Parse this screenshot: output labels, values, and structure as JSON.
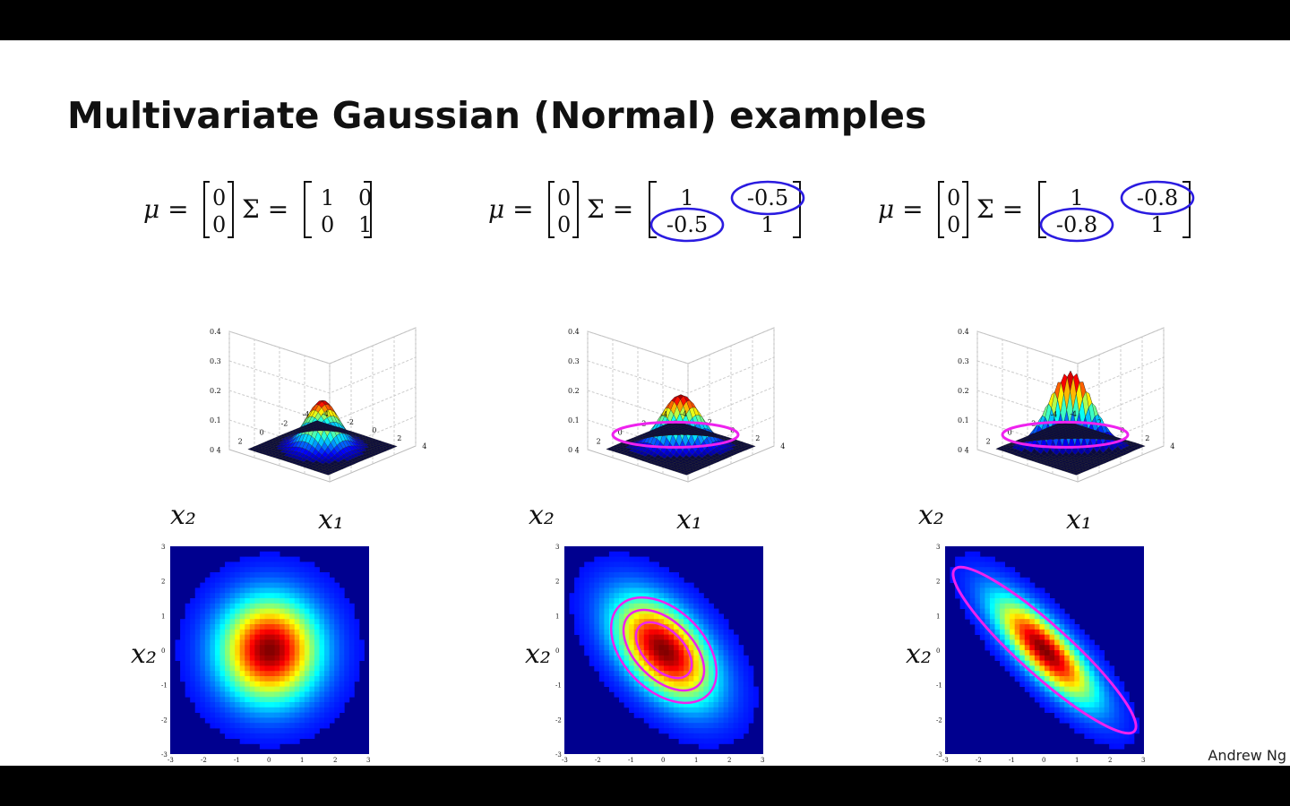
{
  "slide": {
    "title": "Multivariate Gaussian (Normal) examples",
    "author": "Andrew Ng"
  },
  "panels": [
    {
      "mu_symbol": "μ =",
      "mu": [
        "0",
        "0"
      ],
      "sigma_symbol": "Σ =",
      "sigma": [
        [
          "1",
          "0"
        ],
        [
          "0",
          "1"
        ]
      ],
      "circled": [],
      "surface_zticks": [
        "0",
        "0.1",
        "0.2",
        "0.3",
        "0.4"
      ],
      "surface_xticks": [
        "-4",
        "-2",
        "0",
        "2",
        "4"
      ],
      "surface_yticks": [
        "4",
        "2",
        "0",
        "-2",
        "-4"
      ],
      "x1_label": "x₁",
      "x2_label": "x₂",
      "heat_xticks": [
        "-3",
        "-2",
        "-1",
        "0",
        "1",
        "2",
        "3"
      ],
      "heat_yticks": [
        "3",
        "2",
        "1",
        "0",
        "-1",
        "-2",
        "-3"
      ],
      "peak": 0.16,
      "rho": 0.0
    },
    {
      "mu_symbol": "μ =",
      "mu": [
        "0",
        "0"
      ],
      "sigma_symbol": "Σ =",
      "sigma": [
        [
          "1",
          "-0.5"
        ],
        [
          "-0.5",
          "1"
        ]
      ],
      "circled": [
        "01",
        "10"
      ],
      "surface_zticks": [
        "0",
        "0.1",
        "0.2",
        "0.3",
        "0.4"
      ],
      "surface_xticks": [
        "-4",
        "-2",
        "0",
        "2",
        "4"
      ],
      "surface_yticks": [
        "4",
        "2",
        "0",
        "-2",
        "-4"
      ],
      "x1_label": "x₁",
      "x2_label": "x₂",
      "heat_xticks": [
        "-3",
        "-2",
        "-1",
        "0",
        "1",
        "2",
        "3"
      ],
      "heat_yticks": [
        "3",
        "2",
        "1",
        "0",
        "-1",
        "-2",
        "-3"
      ],
      "peak": 0.18,
      "rho": -0.5
    },
    {
      "mu_symbol": "μ =",
      "mu": [
        "0",
        "0"
      ],
      "sigma_symbol": "Σ =",
      "sigma": [
        [
          "1",
          "-0.8"
        ],
        [
          "-0.8",
          "1"
        ]
      ],
      "circled": [
        "01",
        "10"
      ],
      "surface_zticks": [
        "0",
        "0.1",
        "0.2",
        "0.3",
        "0.4"
      ],
      "surface_xticks": [
        "-4",
        "-2",
        "0",
        "2",
        "4"
      ],
      "surface_yticks": [
        "4",
        "2",
        "0",
        "-2",
        "-4"
      ],
      "x1_label": "x₁",
      "x2_label": "x₂",
      "heat_xticks": [
        "-3",
        "-2",
        "-1",
        "0",
        "1",
        "2",
        "3"
      ],
      "heat_yticks": [
        "3",
        "2",
        "1",
        "0",
        "-1",
        "-2",
        "-3"
      ],
      "peak": 0.26,
      "rho": -0.8
    }
  ],
  "colors": {
    "annotation_blue": "#2a1be0",
    "annotation_magenta": "#ee22ee",
    "background_navy": "#00008f"
  }
}
